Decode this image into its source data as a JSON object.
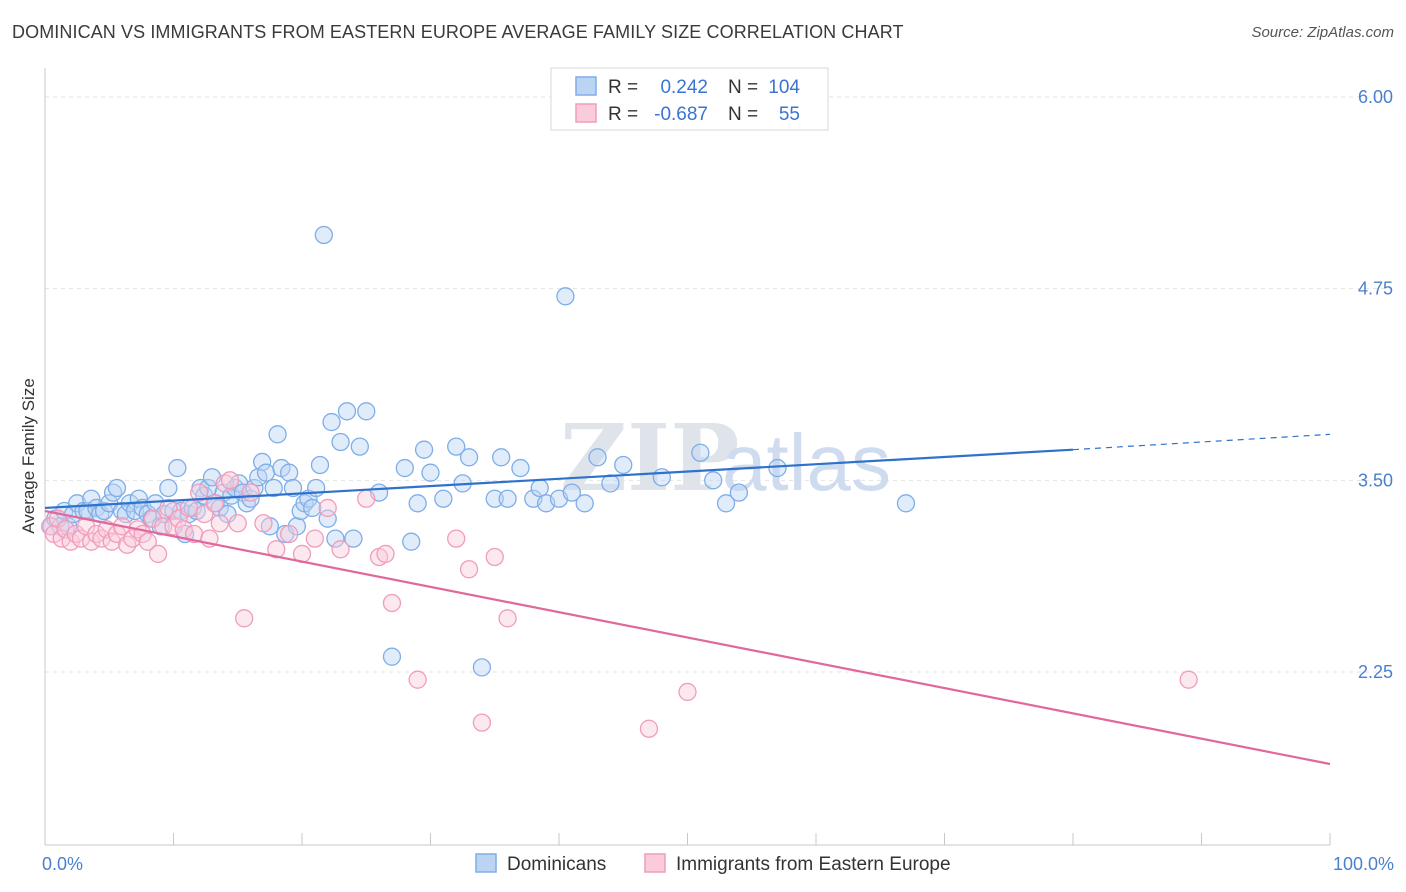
{
  "header": {
    "title": "DOMINICAN VS IMMIGRANTS FROM EASTERN EUROPE AVERAGE FAMILY SIZE CORRELATION CHART",
    "source": "Source: ZipAtlas.com"
  },
  "legend_box": {
    "rows": [
      {
        "r_label": "R =",
        "r_value": "0.242",
        "n_label": "N =",
        "n_value": "104"
      },
      {
        "r_label": "R =",
        "r_value": "-0.687",
        "n_label": "N =",
        "n_value": "55"
      }
    ]
  },
  "watermark": {
    "zip": "ZIP",
    "atlas": "atlas"
  },
  "chart_data": {
    "type": "scatter",
    "title": "DOMINICAN VS IMMIGRANTS FROM EASTERN EUROPE AVERAGE FAMILY SIZE CORRELATION CHART",
    "xlabel": "",
    "ylabel": "Average Family Size",
    "xlim": [
      0,
      100
    ],
    "ylim": [
      1.0,
      6.2
    ],
    "x_tick_labels": [
      "0.0%",
      "100.0%"
    ],
    "y_ticks": [
      2.25,
      3.5,
      4.75,
      6.0
    ],
    "y_tick_labels": [
      "2.25",
      "3.50",
      "4.75",
      "6.00"
    ],
    "grid": true,
    "legend_position": "top-center",
    "colors": {
      "dominicans": "#7eaee8",
      "eastern_europe": "#f19cbb",
      "blue_line": "#2f72cc",
      "pink_line": "#e0689a"
    },
    "series": [
      {
        "name": "Dominicans",
        "r": 0.242,
        "n": 104,
        "trend": {
          "x0": 0,
          "y0": 3.32,
          "x1": 80,
          "y1": 3.7,
          "dashed_to_x": 100,
          "dashed_to_y": 3.8
        },
        "points": [
          [
            0.5,
            3.2
          ],
          [
            0.8,
            3.25
          ],
          [
            1.2,
            3.2
          ],
          [
            1.5,
            3.3
          ],
          [
            1.8,
            3.2
          ],
          [
            2.2,
            3.28
          ],
          [
            2.5,
            3.35
          ],
          [
            3.0,
            3.3
          ],
          [
            3.3,
            3.3
          ],
          [
            3.6,
            3.38
          ],
          [
            4.0,
            3.32
          ],
          [
            4.3,
            3.28
          ],
          [
            4.6,
            3.3
          ],
          [
            5.0,
            3.35
          ],
          [
            5.3,
            3.42
          ],
          [
            5.6,
            3.45
          ],
          [
            6.0,
            3.3
          ],
          [
            6.3,
            3.28
          ],
          [
            6.6,
            3.35
          ],
          [
            7.0,
            3.3
          ],
          [
            7.3,
            3.38
          ],
          [
            7.6,
            3.32
          ],
          [
            8.0,
            3.28
          ],
          [
            8.3,
            3.25
          ],
          [
            8.6,
            3.35
          ],
          [
            9.0,
            3.2
          ],
          [
            9.3,
            3.28
          ],
          [
            9.6,
            3.45
          ],
          [
            10.0,
            3.3
          ],
          [
            10.3,
            3.58
          ],
          [
            10.6,
            3.3
          ],
          [
            10.9,
            3.15
          ],
          [
            11.2,
            3.28
          ],
          [
            11.5,
            3.32
          ],
          [
            11.8,
            3.3
          ],
          [
            12.1,
            3.45
          ],
          [
            12.4,
            3.4
          ],
          [
            12.7,
            3.45
          ],
          [
            13.0,
            3.52
          ],
          [
            13.3,
            3.35
          ],
          [
            13.6,
            3.32
          ],
          [
            13.9,
            3.42
          ],
          [
            14.2,
            3.28
          ],
          [
            14.5,
            3.4
          ],
          [
            14.8,
            3.45
          ],
          [
            15.1,
            3.48
          ],
          [
            15.4,
            3.42
          ],
          [
            15.7,
            3.35
          ],
          [
            16.0,
            3.38
          ],
          [
            16.3,
            3.45
          ],
          [
            16.6,
            3.52
          ],
          [
            16.9,
            3.62
          ],
          [
            17.2,
            3.55
          ],
          [
            17.5,
            3.2
          ],
          [
            17.8,
            3.45
          ],
          [
            18.1,
            3.8
          ],
          [
            18.4,
            3.58
          ],
          [
            18.7,
            3.15
          ],
          [
            19.0,
            3.55
          ],
          [
            19.3,
            3.45
          ],
          [
            19.6,
            3.2
          ],
          [
            19.9,
            3.3
          ],
          [
            20.2,
            3.35
          ],
          [
            20.5,
            3.38
          ],
          [
            20.8,
            3.32
          ],
          [
            21.1,
            3.45
          ],
          [
            21.4,
            3.6
          ],
          [
            21.7,
            5.1
          ],
          [
            22.0,
            3.25
          ],
          [
            22.3,
            3.88
          ],
          [
            22.6,
            3.12
          ],
          [
            23.0,
            3.75
          ],
          [
            23.5,
            3.95
          ],
          [
            24.0,
            3.12
          ],
          [
            24.5,
            3.72
          ],
          [
            25.0,
            3.95
          ],
          [
            26.0,
            3.42
          ],
          [
            27.0,
            2.35
          ],
          [
            28.0,
            3.58
          ],
          [
            28.5,
            3.1
          ],
          [
            29.0,
            3.35
          ],
          [
            29.5,
            3.7
          ],
          [
            30.0,
            3.55
          ],
          [
            31.0,
            3.38
          ],
          [
            32.0,
            3.72
          ],
          [
            32.5,
            3.48
          ],
          [
            33.0,
            3.65
          ],
          [
            34.0,
            2.28
          ],
          [
            35.0,
            3.38
          ],
          [
            35.5,
            3.65
          ],
          [
            36.0,
            3.38
          ],
          [
            37.0,
            3.58
          ],
          [
            38.0,
            3.38
          ],
          [
            38.5,
            3.45
          ],
          [
            39.0,
            3.35
          ],
          [
            40.0,
            3.38
          ],
          [
            40.5,
            4.7
          ],
          [
            41.0,
            3.42
          ],
          [
            42.0,
            3.35
          ],
          [
            43.0,
            3.65
          ],
          [
            44.0,
            3.48
          ],
          [
            45.0,
            3.6
          ],
          [
            48.0,
            3.52
          ],
          [
            51.0,
            3.68
          ]
        ],
        "extra_points": [
          [
            52.0,
            3.5
          ],
          [
            53.0,
            3.35
          ],
          [
            54.0,
            3.42
          ],
          [
            57.0,
            3.58
          ],
          [
            67.0,
            3.35
          ]
        ]
      },
      {
        "name": "Immigrants from Eastern Europe",
        "r": -0.687,
        "n": 55,
        "trend": {
          "x0": 0,
          "y0": 3.3,
          "x1": 100,
          "y1": 1.65
        },
        "points": [
          [
            0.4,
            3.2
          ],
          [
            0.7,
            3.15
          ],
          [
            1.0,
            3.25
          ],
          [
            1.3,
            3.12
          ],
          [
            1.6,
            3.18
          ],
          [
            2.0,
            3.1
          ],
          [
            2.4,
            3.15
          ],
          [
            2.8,
            3.12
          ],
          [
            3.2,
            3.2
          ],
          [
            3.6,
            3.1
          ],
          [
            4.0,
            3.15
          ],
          [
            4.4,
            3.12
          ],
          [
            4.8,
            3.18
          ],
          [
            5.2,
            3.1
          ],
          [
            5.6,
            3.15
          ],
          [
            6.0,
            3.2
          ],
          [
            6.4,
            3.08
          ],
          [
            6.8,
            3.12
          ],
          [
            7.2,
            3.18
          ],
          [
            7.6,
            3.15
          ],
          [
            8.0,
            3.1
          ],
          [
            8.4,
            3.25
          ],
          [
            8.8,
            3.02
          ],
          [
            9.2,
            3.2
          ],
          [
            9.6,
            3.32
          ],
          [
            10.0,
            3.2
          ],
          [
            10.4,
            3.25
          ],
          [
            10.8,
            3.18
          ],
          [
            11.2,
            3.32
          ],
          [
            11.6,
            3.15
          ],
          [
            12.0,
            3.42
          ],
          [
            12.4,
            3.28
          ],
          [
            12.8,
            3.12
          ],
          [
            13.2,
            3.35
          ],
          [
            13.6,
            3.22
          ],
          [
            14.0,
            3.48
          ],
          [
            14.4,
            3.5
          ],
          [
            15.0,
            3.22
          ],
          [
            15.5,
            2.6
          ],
          [
            16.0,
            3.42
          ],
          [
            17.0,
            3.22
          ],
          [
            18.0,
            3.05
          ],
          [
            19.0,
            3.15
          ],
          [
            20.0,
            3.02
          ],
          [
            21.0,
            3.12
          ],
          [
            22.0,
            3.32
          ],
          [
            23.0,
            3.05
          ],
          [
            25.0,
            3.38
          ],
          [
            26.0,
            3.0
          ],
          [
            27.0,
            2.7
          ],
          [
            29.0,
            2.2
          ],
          [
            32.0,
            3.12
          ],
          [
            33.0,
            2.92
          ],
          [
            34.0,
            1.92
          ],
          [
            35.0,
            3.0
          ]
        ],
        "extra_points": [
          [
            36.0,
            2.6
          ],
          [
            47.0,
            1.88
          ],
          [
            50.0,
            2.12
          ],
          [
            89.0,
            2.2
          ],
          [
            26.5,
            3.02
          ]
        ]
      }
    ]
  },
  "axes": {
    "x_left_label": "0.0%",
    "x_right_label": "100.0%",
    "y_title": "Average Family Size"
  },
  "bottom_legend": {
    "items": [
      {
        "label": "Dominicans",
        "color": "#7eaee8"
      },
      {
        "label": "Immigrants from Eastern Europe",
        "color": "#f19cbb"
      }
    ]
  }
}
